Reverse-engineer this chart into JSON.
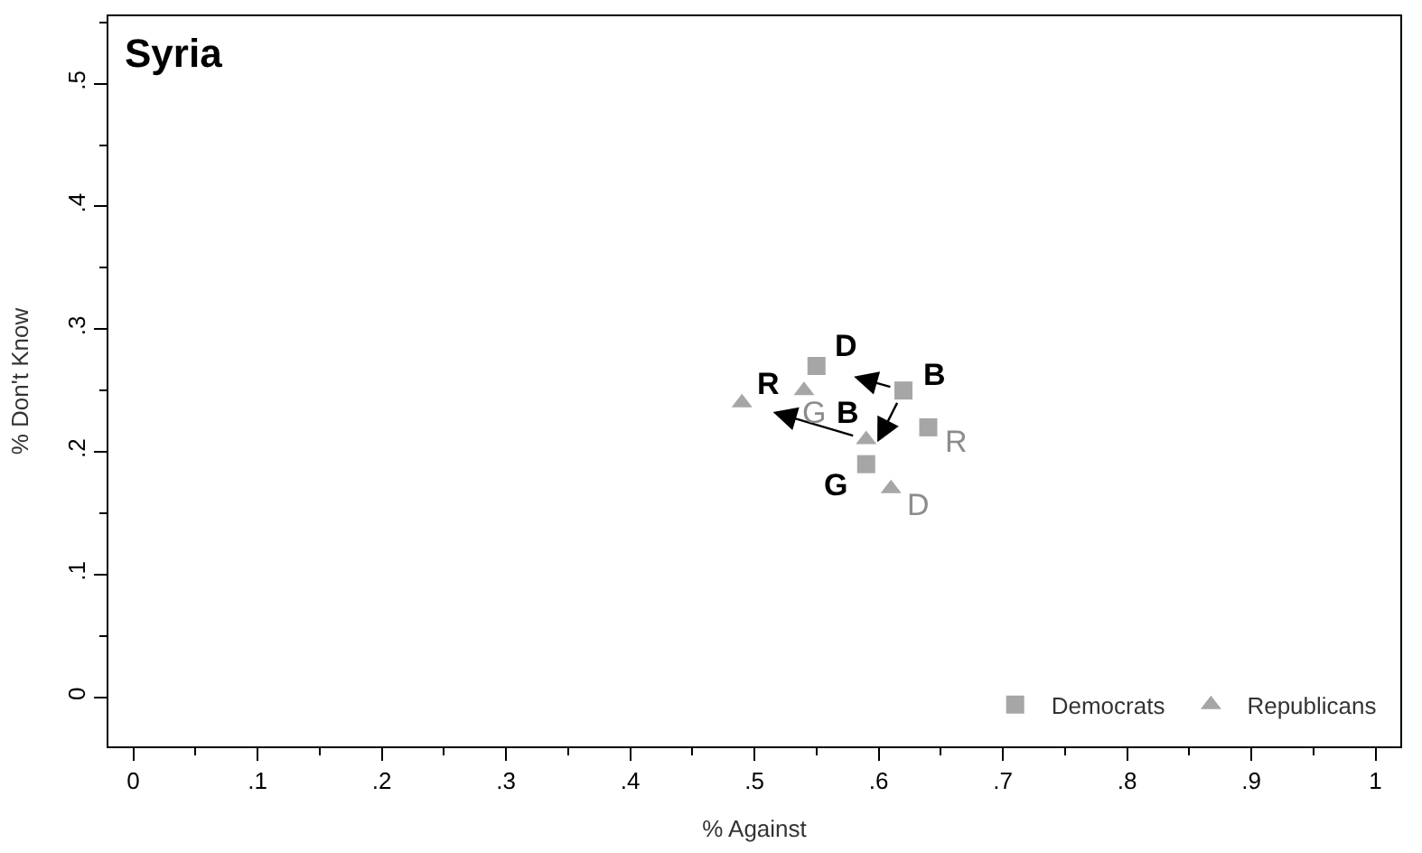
{
  "chart_data": {
    "type": "scatter",
    "title": "Syria",
    "xlabel": "% Against",
    "ylabel": "% Don't Know",
    "xlim": [
      -0.02,
      1.02
    ],
    "ylim": [
      -0.04,
      0.555
    ],
    "xticks": [
      {
        "value": 0,
        "label": "0"
      },
      {
        "value": 0.05,
        "label": null
      },
      {
        "value": 0.1,
        "label": ".1"
      },
      {
        "value": 0.15,
        "label": null
      },
      {
        "value": 0.2,
        "label": ".2"
      },
      {
        "value": 0.25,
        "label": null
      },
      {
        "value": 0.3,
        "label": ".3"
      },
      {
        "value": 0.35,
        "label": null
      },
      {
        "value": 0.4,
        "label": ".4"
      },
      {
        "value": 0.45,
        "label": null
      },
      {
        "value": 0.5,
        "label": ".5"
      },
      {
        "value": 0.55,
        "label": null
      },
      {
        "value": 0.6,
        "label": ".6"
      },
      {
        "value": 0.65,
        "label": null
      },
      {
        "value": 0.7,
        "label": ".7"
      },
      {
        "value": 0.75,
        "label": null
      },
      {
        "value": 0.8,
        "label": ".8"
      },
      {
        "value": 0.85,
        "label": null
      },
      {
        "value": 0.9,
        "label": ".9"
      },
      {
        "value": 0.95,
        "label": null
      },
      {
        "value": 1,
        "label": "1"
      }
    ],
    "yticks": [
      {
        "value": 0,
        "label": "0"
      },
      {
        "value": 0.05,
        "label": null
      },
      {
        "value": 0.1,
        "label": ".1"
      },
      {
        "value": 0.15,
        "label": null
      },
      {
        "value": 0.2,
        "label": ".2"
      },
      {
        "value": 0.25,
        "label": null
      },
      {
        "value": 0.3,
        "label": ".3"
      },
      {
        "value": 0.35,
        "label": null
      },
      {
        "value": 0.4,
        "label": ".4"
      },
      {
        "value": 0.45,
        "label": null
      },
      {
        "value": 0.5,
        "label": ".5"
      },
      {
        "value": 0.55,
        "label": null
      }
    ],
    "legend": "bottom right",
    "series": [
      {
        "name": "Democrats",
        "color": "#a6a6a6",
        "marker": "square",
        "x": [
          0.55,
          0.62,
          0.64,
          0.59
        ],
        "values": [
          0.27,
          0.25,
          0.22,
          0.19
        ]
      },
      {
        "name": "Republicans",
        "color": "#a6a6a6",
        "marker": "triangle",
        "x": [
          0.49,
          0.54,
          0.59,
          0.61
        ],
        "values": [
          0.24,
          0.25,
          0.21,
          0.17
        ]
      }
    ],
    "annotations": [
      {
        "text": "D",
        "x": 0.55,
        "y": 0.27
      },
      {
        "text": "B",
        "x": 0.62,
        "y": 0.25
      },
      {
        "text": "R",
        "x": 0.64,
        "y": 0.22
      },
      {
        "text": "G",
        "x": 0.59,
        "y": 0.19
      },
      {
        "text": "R",
        "x": 0.49,
        "y": 0.24
      },
      {
        "text": "G",
        "x": 0.54,
        "y": 0.25
      },
      {
        "text": "B",
        "x": 0.59,
        "y": 0.21
      },
      {
        "text": "D",
        "x": 0.61,
        "y": 0.17
      }
    ]
  }
}
